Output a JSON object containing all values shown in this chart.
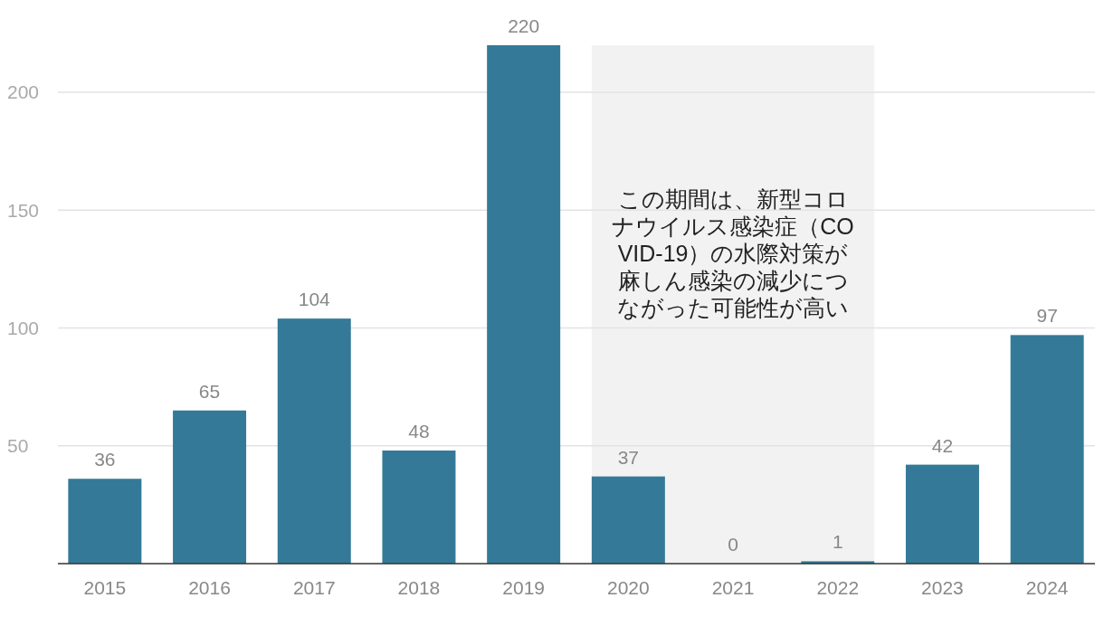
{
  "chart_data": {
    "type": "bar",
    "categories": [
      "2015",
      "2016",
      "2017",
      "2018",
      "2019",
      "2020",
      "2021",
      "2022",
      "2023",
      "2024"
    ],
    "values": [
      36,
      65,
      104,
      48,
      220,
      37,
      0,
      1,
      42,
      97
    ],
    "color": "#347a98",
    "data_labels": true,
    "ylim": [
      0,
      220
    ],
    "yticks": [
      50,
      100,
      150,
      200
    ],
    "grid": "y",
    "bands": [
      {
        "axis": "x",
        "from": "2020",
        "to": "2022",
        "label": "この期間は、新型コロナウイルス感染症（COVID-19）の水際対策が麻しん感染の減少につながった可能性が高い",
        "color": "#f2f2f2"
      }
    ]
  }
}
